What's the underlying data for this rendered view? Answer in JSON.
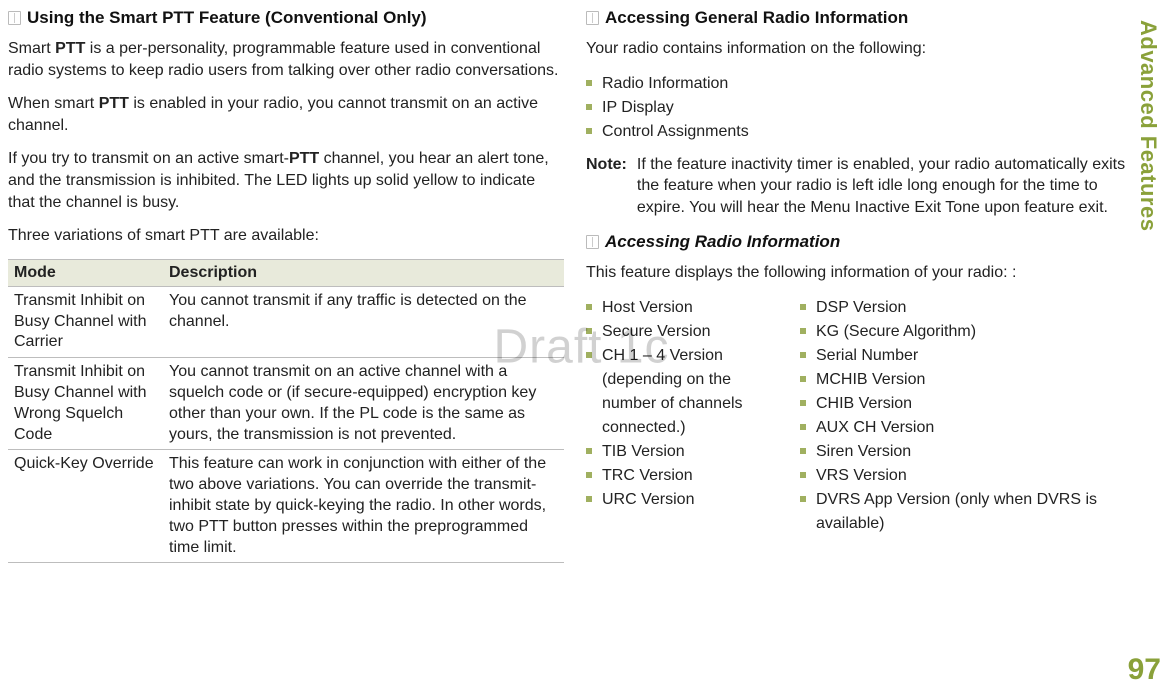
{
  "watermark": "Draft 1c",
  "sideTab": "Advanced Features",
  "pageNumber": "97",
  "left": {
    "heading": "Using the Smart PTT Feature (Conventional Only)",
    "p1_a": "Smart ",
    "p1_b": "PTT",
    "p1_c": " is a per-personality, programmable feature used in conventional radio systems to keep radio users from talking over other radio conversations.",
    "p2_a": "When smart ",
    "p2_b": "PTT",
    "p2_c": " is enabled in your radio, you cannot transmit on an active channel.",
    "p3_a": "If you try to transmit on an active smart-",
    "p3_b": "PTT",
    "p3_c": " channel, you hear an alert tone, and the transmission is inhibited. The LED lights up solid yellow to indicate that the channel is busy.",
    "p4": "Three variations of smart PTT are available:",
    "table": {
      "headers": [
        "Mode",
        "Description"
      ],
      "rows": [
        [
          "Transmit Inhibit on Busy Channel with Carrier",
          "You cannot transmit if any traffic is detected on the channel."
        ],
        [
          "Transmit Inhibit on Busy Channel with Wrong Squelch Code",
          "You cannot transmit on an active channel with a squelch code or (if secure-equipped) encryption key other than your own. If the PL code is the same as yours, the transmission is not prevented."
        ],
        [
          "Quick-Key Override",
          "This feature can work in conjunction with either of the two above variations. You can override the transmit-inhibit state by quick-keying the radio. In other words, two PTT button presses within the preprogrammed time limit."
        ]
      ]
    }
  },
  "right": {
    "heading": "Accessing General Radio Information",
    "intro": "Your radio contains information on the following:",
    "list1": [
      "Radio Information",
      "IP Display",
      "Control Assignments"
    ],
    "noteLabel": "Note:",
    "noteBody": "If the feature inactivity timer is enabled, your radio automatically exits the feature when your radio is left idle long enough for the time to expire. You will hear the Menu Inactive Exit Tone upon feature exit.",
    "sub": {
      "heading": "Accessing Radio Information",
      "intro": "This feature displays the following information of your radio:  :",
      "leftList": [
        "Host Version",
        "Secure Version",
        "CH 1 – 4 Version (depending on the number of channels connected.)",
        "TIB Version",
        "TRC Version",
        "URC Version"
      ],
      "rightList": [
        "DSP Version",
        "KG (Secure Algorithm)",
        "Serial Number",
        "MCHIB Version",
        "CHIB Version",
        "AUX CH Version",
        "Siren Version",
        "VRS Version",
        "DVRS App Version (only when DVRS is available)"
      ]
    }
  }
}
